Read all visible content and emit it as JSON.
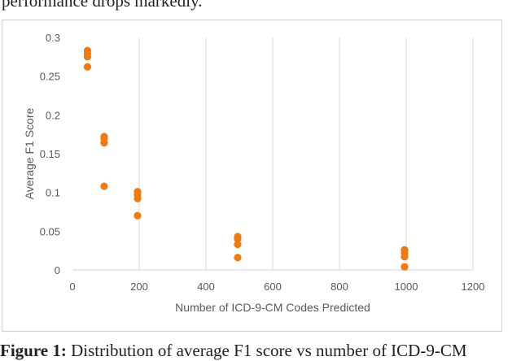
{
  "page": {
    "top_text": "performance drops markedly.",
    "caption_label": "Figure 1:",
    "caption_text": " Distribution of average F1 score vs number of ICD-9-CM"
  },
  "chart_data": {
    "type": "scatter",
    "title": "",
    "xlabel": "Number of ICD-9-CM Codes Predicted",
    "ylabel": "Average F1 Score",
    "xlim": [
      0,
      1200
    ],
    "ylim": [
      0,
      0.3
    ],
    "x_ticks": [
      "0",
      "200",
      "400",
      "600",
      "800",
      "1000",
      "1200"
    ],
    "y_ticks": [
      "0",
      "0.05",
      "0.1",
      "0.15",
      "0.2",
      "0.25",
      "0.3"
    ],
    "grid": "vertical",
    "marker_color": "#f07a10",
    "points": [
      {
        "x": 45,
        "y": 0.283
      },
      {
        "x": 45,
        "y": 0.279
      },
      {
        "x": 45,
        "y": 0.275
      },
      {
        "x": 45,
        "y": 0.262
      },
      {
        "x": 95,
        "y": 0.172
      },
      {
        "x": 95,
        "y": 0.169
      },
      {
        "x": 95,
        "y": 0.164
      },
      {
        "x": 95,
        "y": 0.108
      },
      {
        "x": 195,
        "y": 0.101
      },
      {
        "x": 195,
        "y": 0.097
      },
      {
        "x": 195,
        "y": 0.092
      },
      {
        "x": 195,
        "y": 0.07
      },
      {
        "x": 495,
        "y": 0.043
      },
      {
        "x": 495,
        "y": 0.04
      },
      {
        "x": 495,
        "y": 0.033
      },
      {
        "x": 495,
        "y": 0.016
      },
      {
        "x": 995,
        "y": 0.026
      },
      {
        "x": 995,
        "y": 0.022
      },
      {
        "x": 995,
        "y": 0.017
      },
      {
        "x": 995,
        "y": 0.004
      }
    ]
  }
}
